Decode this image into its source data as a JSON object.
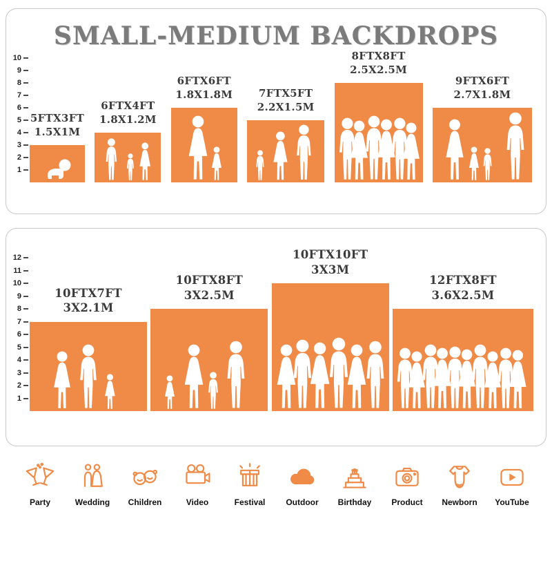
{
  "title": "SMALL-MEDIUM BACKDROPS",
  "colors": {
    "accent": "#EF8A47"
  },
  "panels": [
    {
      "name": "small-backdrops",
      "ruler": [
        "10",
        "9",
        "8",
        "7",
        "6",
        "5",
        "4",
        "3",
        "2",
        "1"
      ],
      "backdrops": [
        {
          "ft": "5FTX3FT",
          "m": "1.5X1M",
          "w_ft": 5,
          "h_ft": 3
        },
        {
          "ft": "6FTX4FT",
          "m": "1.8X1.2M",
          "w_ft": 6,
          "h_ft": 4
        },
        {
          "ft": "6FTX6FT",
          "m": "1.8X1.8M",
          "w_ft": 6,
          "h_ft": 6
        },
        {
          "ft": "7FTX5FT",
          "m": "2.2X1.5M",
          "w_ft": 7,
          "h_ft": 5
        },
        {
          "ft": "8FTX8FT",
          "m": "2.5X2.5M",
          "w_ft": 8,
          "h_ft": 8
        },
        {
          "ft": "9FTX6FT",
          "m": "2.7X1.8M",
          "w_ft": 9,
          "h_ft": 6
        }
      ]
    },
    {
      "name": "medium-backdrops",
      "ruler": [
        "12",
        "11",
        "10",
        "9",
        "8",
        "7",
        "6",
        "5",
        "4",
        "3",
        "2",
        "1"
      ],
      "backdrops": [
        {
          "ft": "10FTX7FT",
          "m": "3X2.1M",
          "w_ft": 10,
          "h_ft": 7
        },
        {
          "ft": "10FTX8FT",
          "m": "3X2.5M",
          "w_ft": 10,
          "h_ft": 8
        },
        {
          "ft": "10FTX10FT",
          "m": "3X3M",
          "w_ft": 10,
          "h_ft": 10
        },
        {
          "ft": "12FTX8FT",
          "m": "3.6X2.5M",
          "w_ft": 12,
          "h_ft": 8
        }
      ]
    }
  ],
  "categories": [
    {
      "label": "Party",
      "icon": "party-icon"
    },
    {
      "label": "Wedding",
      "icon": "wedding-icon"
    },
    {
      "label": "Children",
      "icon": "children-icon"
    },
    {
      "label": "Video",
      "icon": "video-icon"
    },
    {
      "label": "Festival",
      "icon": "festival-icon"
    },
    {
      "label": "Outdoor",
      "icon": "outdoor-icon"
    },
    {
      "label": "Birthday",
      "icon": "birthday-icon"
    },
    {
      "label": "Product",
      "icon": "product-icon"
    },
    {
      "label": "Newborn",
      "icon": "newborn-icon"
    },
    {
      "label": "YouTube",
      "icon": "youtube-icon"
    }
  ]
}
